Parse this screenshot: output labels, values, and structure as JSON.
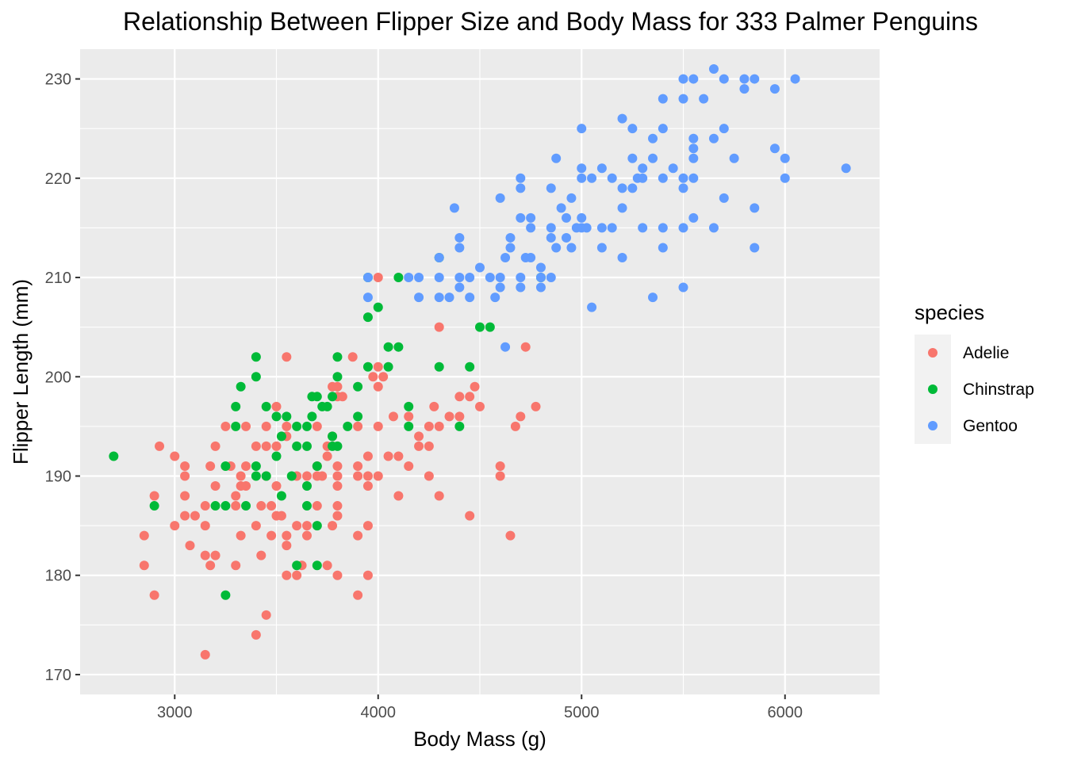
{
  "chart_data": {
    "type": "scatter",
    "title": "Relationship Between Flipper Size and Body Mass for 333 Palmer Penguins",
    "xlabel": "Body Mass (g)",
    "ylabel": "Flipper Length (mm)",
    "xlim": [
      2535,
      6465
    ],
    "ylim": [
      168,
      233
    ],
    "x_ticks": [
      3000,
      4000,
      5000,
      6000
    ],
    "y_ticks": [
      170,
      180,
      190,
      200,
      210,
      220,
      230
    ],
    "grid": true,
    "legend": {
      "title": "species",
      "position": "right"
    },
    "colors": {
      "panel": "#EBEBEB",
      "grid": "#FFFFFF",
      "Adelie": "#F8766D",
      "Chinstrap": "#00BA38",
      "Gentoo": "#619CFF"
    },
    "series": [
      {
        "name": "Adelie",
        "color": "#F8766D",
        "points": [
          [
            2850,
            184
          ],
          [
            2850,
            181
          ],
          [
            2900,
            178
          ],
          [
            2900,
            188
          ],
          [
            2925,
            193
          ],
          [
            3000,
            185
          ],
          [
            3000,
            192
          ],
          [
            3050,
            191
          ],
          [
            3050,
            190
          ],
          [
            3050,
            188
          ],
          [
            3050,
            186
          ],
          [
            3075,
            183
          ],
          [
            3100,
            186
          ],
          [
            3150,
            187
          ],
          [
            3150,
            185
          ],
          [
            3150,
            182
          ],
          [
            3150,
            172
          ],
          [
            3175,
            191
          ],
          [
            3175,
            181
          ],
          [
            3200,
            193
          ],
          [
            3200,
            189
          ],
          [
            3200,
            182
          ],
          [
            3250,
            195
          ],
          [
            3275,
            191
          ],
          [
            3300,
            188
          ],
          [
            3300,
            187
          ],
          [
            3300,
            181
          ],
          [
            3325,
            190
          ],
          [
            3325,
            189
          ],
          [
            3325,
            184
          ],
          [
            3350,
            195
          ],
          [
            3350,
            191
          ],
          [
            3350,
            189
          ],
          [
            3400,
            193
          ],
          [
            3400,
            185
          ],
          [
            3400,
            174
          ],
          [
            3425,
            187
          ],
          [
            3425,
            182
          ],
          [
            3450,
            195
          ],
          [
            3450,
            193
          ],
          [
            3450,
            190
          ],
          [
            3450,
            176
          ],
          [
            3475,
            187
          ],
          [
            3475,
            184
          ],
          [
            3500,
            197
          ],
          [
            3500,
            193
          ],
          [
            3500,
            189
          ],
          [
            3500,
            186
          ],
          [
            3525,
            186
          ],
          [
            3550,
            202
          ],
          [
            3550,
            195
          ],
          [
            3550,
            194
          ],
          [
            3550,
            184
          ],
          [
            3550,
            183
          ],
          [
            3550,
            180
          ],
          [
            3600,
            190
          ],
          [
            3600,
            185
          ],
          [
            3600,
            180
          ],
          [
            3625,
            181
          ],
          [
            3650,
            190
          ],
          [
            3650,
            185
          ],
          [
            3650,
            184
          ],
          [
            3700,
            195
          ],
          [
            3700,
            191
          ],
          [
            3700,
            187
          ],
          [
            3700,
            190
          ],
          [
            3725,
            190
          ],
          [
            3750,
            193
          ],
          [
            3750,
            192
          ],
          [
            3750,
            181
          ],
          [
            3775,
            199
          ],
          [
            3775,
            194
          ],
          [
            3775,
            185
          ],
          [
            3800,
            199
          ],
          [
            3800,
            198
          ],
          [
            3800,
            191
          ],
          [
            3800,
            190
          ],
          [
            3800,
            189
          ],
          [
            3800,
            187
          ],
          [
            3800,
            186
          ],
          [
            3800,
            180
          ],
          [
            3825,
            198
          ],
          [
            3875,
            202
          ],
          [
            3900,
            195
          ],
          [
            3900,
            191
          ],
          [
            3900,
            190
          ],
          [
            3900,
            184
          ],
          [
            3900,
            178
          ],
          [
            3950,
            192
          ],
          [
            3950,
            190
          ],
          [
            3950,
            189
          ],
          [
            3950,
            185
          ],
          [
            3950,
            180
          ],
          [
            3975,
            200
          ],
          [
            4000,
            210
          ],
          [
            4000,
            201
          ],
          [
            4000,
            199
          ],
          [
            4000,
            195
          ],
          [
            4000,
            190
          ],
          [
            4025,
            200
          ],
          [
            4050,
            192
          ],
          [
            4075,
            196
          ],
          [
            4100,
            192
          ],
          [
            4100,
            188
          ],
          [
            4150,
            196
          ],
          [
            4150,
            191
          ],
          [
            4200,
            194
          ],
          [
            4200,
            193
          ],
          [
            4250,
            195
          ],
          [
            4250,
            193
          ],
          [
            4250,
            190
          ],
          [
            4275,
            197
          ],
          [
            4300,
            205
          ],
          [
            4300,
            195
          ],
          [
            4300,
            188
          ],
          [
            4350,
            196
          ],
          [
            4400,
            198
          ],
          [
            4400,
            196
          ],
          [
            4450,
            198
          ],
          [
            4450,
            186
          ],
          [
            4475,
            199
          ],
          [
            4500,
            197
          ],
          [
            4600,
            191
          ],
          [
            4600,
            190
          ],
          [
            4650,
            184
          ],
          [
            4675,
            195
          ],
          [
            4700,
            196
          ],
          [
            4725,
            203
          ],
          [
            4775,
            197
          ]
        ]
      },
      {
        "name": "Chinstrap",
        "color": "#00BA38",
        "points": [
          [
            2700,
            192
          ],
          [
            2900,
            187
          ],
          [
            3200,
            187
          ],
          [
            3250,
            191
          ],
          [
            3250,
            187
          ],
          [
            3250,
            178
          ],
          [
            3300,
            197
          ],
          [
            3300,
            195
          ],
          [
            3325,
            199
          ],
          [
            3350,
            187
          ],
          [
            3400,
            202
          ],
          [
            3400,
            200
          ],
          [
            3400,
            191
          ],
          [
            3400,
            190
          ],
          [
            3450,
            197
          ],
          [
            3450,
            190
          ],
          [
            3500,
            196
          ],
          [
            3500,
            192
          ],
          [
            3525,
            194
          ],
          [
            3525,
            188
          ],
          [
            3550,
            196
          ],
          [
            3575,
            190
          ],
          [
            3600,
            195
          ],
          [
            3600,
            193
          ],
          [
            3600,
            181
          ],
          [
            3650,
            195
          ],
          [
            3650,
            193
          ],
          [
            3650,
            189
          ],
          [
            3650,
            187
          ],
          [
            3675,
            198
          ],
          [
            3675,
            196
          ],
          [
            3700,
            198
          ],
          [
            3700,
            191
          ],
          [
            3700,
            185
          ],
          [
            3700,
            181
          ],
          [
            3725,
            197
          ],
          [
            3750,
            197
          ],
          [
            3775,
            198
          ],
          [
            3775,
            194
          ],
          [
            3775,
            193
          ],
          [
            3800,
            202
          ],
          [
            3800,
            200
          ],
          [
            3800,
            193
          ],
          [
            3850,
            195
          ],
          [
            3900,
            199
          ],
          [
            3900,
            196
          ],
          [
            3950,
            210
          ],
          [
            3950,
            206
          ],
          [
            3950,
            201
          ],
          [
            4000,
            207
          ],
          [
            4050,
            203
          ],
          [
            4050,
            201
          ],
          [
            4100,
            210
          ],
          [
            4100,
            203
          ],
          [
            4150,
            197
          ],
          [
            4150,
            195
          ],
          [
            4300,
            212
          ],
          [
            4300,
            201
          ],
          [
            4400,
            195
          ],
          [
            4450,
            201
          ],
          [
            4500,
            205
          ],
          [
            4550,
            205
          ],
          [
            4800,
            210
          ]
        ]
      },
      {
        "name": "Gentoo",
        "color": "#619CFF",
        "points": [
          [
            3950,
            210
          ],
          [
            3950,
            208
          ],
          [
            4150,
            210
          ],
          [
            4200,
            210
          ],
          [
            4200,
            208
          ],
          [
            4300,
            212
          ],
          [
            4300,
            210
          ],
          [
            4300,
            208
          ],
          [
            4350,
            208
          ],
          [
            4375,
            217
          ],
          [
            4400,
            214
          ],
          [
            4400,
            213
          ],
          [
            4400,
            210
          ],
          [
            4400,
            209
          ],
          [
            4450,
            208
          ],
          [
            4450,
            210
          ],
          [
            4500,
            211
          ],
          [
            4550,
            210
          ],
          [
            4575,
            208
          ],
          [
            4600,
            218
          ],
          [
            4600,
            210
          ],
          [
            4600,
            209
          ],
          [
            4625,
            203
          ],
          [
            4625,
            212
          ],
          [
            4650,
            214
          ],
          [
            4650,
            213
          ],
          [
            4700,
            220
          ],
          [
            4700,
            219
          ],
          [
            4700,
            216
          ],
          [
            4700,
            210
          ],
          [
            4700,
            209
          ],
          [
            4725,
            212
          ],
          [
            4750,
            216
          ],
          [
            4750,
            215
          ],
          [
            4750,
            212
          ],
          [
            4800,
            211
          ],
          [
            4800,
            210
          ],
          [
            4800,
            209
          ],
          [
            4850,
            219
          ],
          [
            4850,
            215
          ],
          [
            4850,
            214
          ],
          [
            4850,
            210
          ],
          [
            4875,
            222
          ],
          [
            4875,
            213
          ],
          [
            4900,
            217
          ],
          [
            4925,
            216
          ],
          [
            4925,
            214
          ],
          [
            4950,
            218
          ],
          [
            4950,
            213
          ],
          [
            4975,
            215
          ],
          [
            5000,
            225
          ],
          [
            5000,
            221
          ],
          [
            5000,
            220
          ],
          [
            5000,
            216
          ],
          [
            5000,
            215
          ],
          [
            5025,
            215
          ],
          [
            5050,
            220
          ],
          [
            5050,
            207
          ],
          [
            5100,
            221
          ],
          [
            5100,
            215
          ],
          [
            5100,
            213
          ],
          [
            5150,
            220
          ],
          [
            5150,
            215
          ],
          [
            5200,
            226
          ],
          [
            5200,
            219
          ],
          [
            5200,
            217
          ],
          [
            5200,
            212
          ],
          [
            5250,
            225
          ],
          [
            5250,
            222
          ],
          [
            5250,
            219
          ],
          [
            5275,
            220
          ],
          [
            5300,
            221
          ],
          [
            5300,
            220
          ],
          [
            5300,
            215
          ],
          [
            5350,
            224
          ],
          [
            5350,
            222
          ],
          [
            5350,
            208
          ],
          [
            5400,
            228
          ],
          [
            5400,
            225
          ],
          [
            5400,
            220
          ],
          [
            5400,
            215
          ],
          [
            5400,
            213
          ],
          [
            5450,
            221
          ],
          [
            5500,
            230
          ],
          [
            5500,
            228
          ],
          [
            5500,
            220
          ],
          [
            5500,
            219
          ],
          [
            5500,
            215
          ],
          [
            5500,
            209
          ],
          [
            5550,
            230
          ],
          [
            5550,
            224
          ],
          [
            5550,
            223
          ],
          [
            5550,
            222
          ],
          [
            5550,
            220
          ],
          [
            5550,
            216
          ],
          [
            5600,
            228
          ],
          [
            5650,
            231
          ],
          [
            5650,
            224
          ],
          [
            5650,
            215
          ],
          [
            5700,
            230
          ],
          [
            5700,
            225
          ],
          [
            5700,
            218
          ],
          [
            5750,
            222
          ],
          [
            5800,
            230
          ],
          [
            5800,
            229
          ],
          [
            5850,
            230
          ],
          [
            5850,
            217
          ],
          [
            5850,
            213
          ],
          [
            5950,
            229
          ],
          [
            5950,
            223
          ],
          [
            6000,
            222
          ],
          [
            6000,
            220
          ],
          [
            6050,
            230
          ],
          [
            6300,
            221
          ]
        ]
      }
    ]
  }
}
